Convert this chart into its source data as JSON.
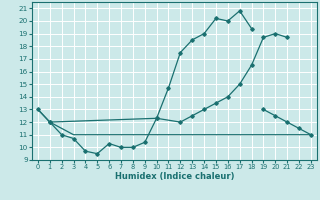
{
  "background_color": "#cce9e9",
  "grid_color": "#ffffff",
  "line_color": "#1a7070",
  "xlabel": "Humidex (Indice chaleur)",
  "xlim": [
    -0.5,
    23.5
  ],
  "ylim": [
    9,
    21.5
  ],
  "yticks": [
    9,
    10,
    11,
    12,
    13,
    14,
    15,
    16,
    17,
    18,
    19,
    20,
    21
  ],
  "xticks": [
    0,
    1,
    2,
    3,
    4,
    5,
    6,
    7,
    8,
    9,
    10,
    11,
    12,
    13,
    14,
    15,
    16,
    17,
    18,
    19,
    20,
    21,
    22,
    23
  ],
  "line1_x": [
    0,
    1,
    2,
    3,
    4,
    5,
    6,
    7,
    8,
    9,
    10,
    11,
    12,
    13,
    14,
    15,
    16,
    17,
    18
  ],
  "line1_y": [
    13,
    12,
    11,
    10.7,
    9.7,
    9.5,
    10.3,
    10,
    10,
    10.4,
    12.3,
    14.7,
    17.5,
    18.5,
    19,
    20.2,
    20,
    20.8,
    19.4
  ],
  "line2_x": [
    0,
    1,
    2,
    3,
    23
  ],
  "line2_y": [
    13,
    12,
    11.5,
    11,
    11
  ],
  "line3_x": [
    1,
    10,
    12,
    13,
    14,
    15,
    16,
    17,
    18,
    19,
    20,
    21
  ],
  "line3_y": [
    12,
    12.3,
    12,
    12.5,
    13,
    13.5,
    14,
    15,
    16.5,
    18.7,
    19,
    18.7
  ],
  "line4_x": [
    19,
    20,
    21,
    22,
    23
  ],
  "line4_y": [
    13,
    12.5,
    12,
    11.5,
    11
  ]
}
